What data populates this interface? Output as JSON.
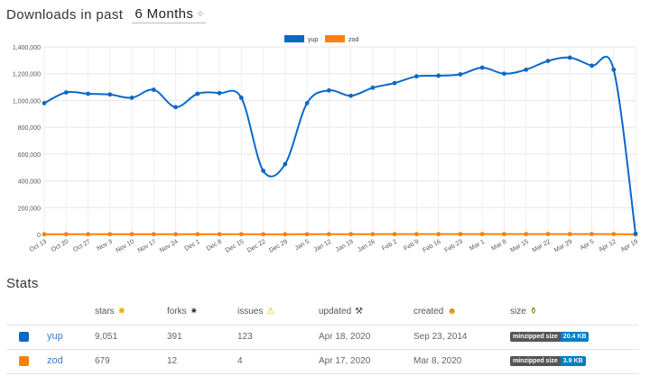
{
  "header": {
    "title": "Downloads in past",
    "period": "6 Months",
    "caret": "◇"
  },
  "colors": {
    "yup": "#0b68c8",
    "zod": "#ff7f0e"
  },
  "chart_data": {
    "type": "line",
    "ylim": [
      0,
      1400000
    ],
    "yticks": [
      0,
      200000,
      400000,
      600000,
      800000,
      1000000,
      1200000,
      1400000
    ],
    "ytick_labels": [
      "0",
      "200,000",
      "400,000",
      "600,000",
      "800,000",
      "1,000,000",
      "1,200,000",
      "1,400,000"
    ],
    "categories": [
      "Oct 13",
      "Oct 20",
      "Oct 27",
      "Nov 3",
      "Nov 10",
      "Nov 17",
      "Nov 24",
      "Dec 1",
      "Dec 8",
      "Dec 15",
      "Dec 22",
      "Dec 29",
      "Jan 5",
      "Jan 12",
      "Jan 19",
      "Jan 26",
      "Feb 2",
      "Feb 9",
      "Feb 16",
      "Feb 23",
      "Mar 1",
      "Mar 8",
      "Mar 15",
      "Mar 22",
      "Mar 29",
      "Apr 5",
      "Apr 12",
      "Apr 19"
    ],
    "series": [
      {
        "name": "yup",
        "values": [
          980000,
          1060000,
          1050000,
          1045000,
          1020000,
          1080000,
          950000,
          1050000,
          1055000,
          1020000,
          475000,
          525000,
          980000,
          1075000,
          1035000,
          1095000,
          1130000,
          1180000,
          1185000,
          1195000,
          1245000,
          1200000,
          1230000,
          1295000,
          1320000,
          1260000,
          1230000,
          5000
        ]
      },
      {
        "name": "zod",
        "values": [
          1200,
          1300,
          1400,
          1450,
          1500,
          1550,
          1500,
          1600,
          1650,
          1600,
          1100,
          1200,
          1800,
          2000,
          2000,
          2100,
          2200,
          2300,
          2400,
          2500,
          2600,
          2500,
          2700,
          2800,
          2900,
          2800,
          2700,
          100
        ]
      }
    ],
    "legend": "top-center"
  },
  "stats": {
    "title": "Stats",
    "columns": [
      {
        "label": "stars",
        "icon": "✸"
      },
      {
        "label": "forks",
        "icon": "✷"
      },
      {
        "label": "issues",
        "icon": "⚠"
      },
      {
        "label": "updated",
        "icon": "⚒"
      },
      {
        "label": "created",
        "icon": "☻"
      },
      {
        "label": "size",
        "icon": "⚱"
      }
    ],
    "rows": [
      {
        "name": "yup",
        "stars": "9,051",
        "forks": "391",
        "issues": "123",
        "updated": "Apr 18, 2020",
        "created": "Sep 23, 2014",
        "badge_label": "minzipped size",
        "badge_value": "20.4 KB"
      },
      {
        "name": "zod",
        "stars": "679",
        "forks": "12",
        "issues": "4",
        "updated": "Apr 17, 2020",
        "created": "Mar 8, 2020",
        "badge_label": "minzipped size",
        "badge_value": "3.9 KB"
      }
    ]
  }
}
